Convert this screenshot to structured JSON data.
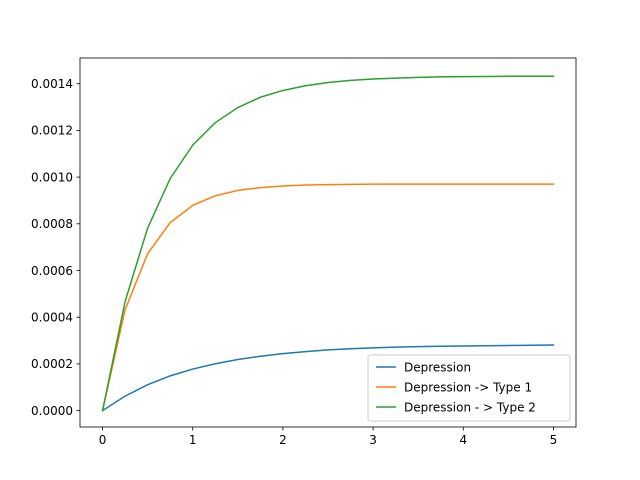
{
  "chart_data": {
    "type": "line",
    "title": "",
    "xlabel": "",
    "ylabel": "",
    "xlim": [
      -0.25,
      5.25
    ],
    "ylim": [
      -7e-05,
      0.00151
    ],
    "grid": false,
    "legend_position": "lower-right",
    "xticks": [
      0,
      1,
      2,
      3,
      4,
      5
    ],
    "xtick_labels": [
      "0",
      "1",
      "2",
      "3",
      "4",
      "5"
    ],
    "yticks": [
      0.0,
      0.0002,
      0.0004,
      0.0006,
      0.0008,
      0.001,
      0.0012,
      0.0014
    ],
    "ytick_labels": [
      "0.0000",
      "0.0002",
      "0.0004",
      "0.0006",
      "0.0008",
      "0.0010",
      "0.0012",
      "0.0014"
    ],
    "x": [
      0,
      0.25,
      0.5,
      0.75,
      1.0,
      1.25,
      1.5,
      1.75,
      2.0,
      2.25,
      2.5,
      2.75,
      3.0,
      3.25,
      3.5,
      3.75,
      4.0,
      4.25,
      4.5,
      4.75,
      5.0
    ],
    "series": [
      {
        "name": "Depression",
        "color": "#1f77b4",
        "values": [
          0.0,
          6.2e-05,
          0.000111,
          0.000149,
          0.000178,
          0.000201,
          0.000219,
          0.000233,
          0.000244,
          0.000253,
          0.00026,
          0.000265,
          0.000269,
          0.000272,
          0.000274,
          0.000276,
          0.000277,
          0.000278,
          0.000279,
          0.00028,
          0.000281
        ]
      },
      {
        "name": "Depression -> Type 1",
        "color": "#ff7f0e",
        "values": [
          0.0,
          0.000432,
          0.000672,
          0.000805,
          0.000879,
          0.00092,
          0.000943,
          0.000955,
          0.000962,
          0.000966,
          0.000968,
          0.000969,
          0.00097,
          0.00097,
          0.00097,
          0.00097,
          0.00097,
          0.00097,
          0.00097,
          0.00097,
          0.00097
        ]
      },
      {
        "name": "Depression - > Type 2",
        "color": "#2ca02c",
        "values": [
          0.0,
          0.000467,
          0.000782,
          0.000994,
          0.001137,
          0.001233,
          0.001298,
          0.001342,
          0.001371,
          0.001391,
          0.001405,
          0.001414,
          0.00142,
          0.001424,
          0.001427,
          0.001429,
          0.00143,
          0.001431,
          0.001432,
          0.001432,
          0.001432
        ]
      }
    ]
  }
}
